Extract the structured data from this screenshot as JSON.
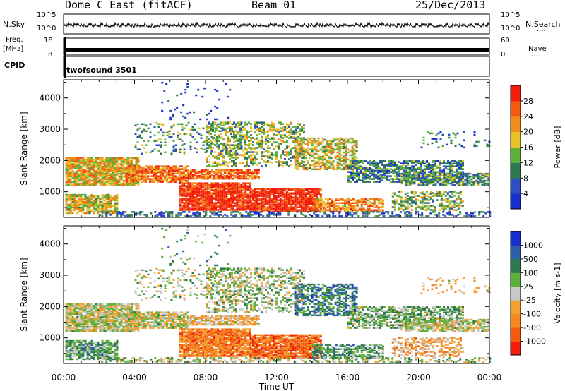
{
  "header": {
    "station": "Dome C East (fitACF)",
    "beam": "Beam 01",
    "date": "25/Dec/2013"
  },
  "left_labels": {
    "nsky": "N.Sky",
    "freq": "Freq.",
    "mhz": "[MHz]",
    "cpid": "CPID"
  },
  "right_labels": {
    "nsearch": "N.Search",
    "nave": "Nave",
    "dots6": "......",
    "dots4": "...."
  },
  "cpid_text": "twofsound 3501",
  "strip_ticks": {
    "nsky_top": "10^5",
    "nsky_bot": "10^0",
    "freq_top": "18",
    "freq_bot": "8",
    "nave_top": "60",
    "nave_bot": "0"
  },
  "colors": {
    "low": "#1a2fcf",
    "mid": "#2e7a4e",
    "green": "#5fb03a",
    "yellow": "#e9c22b",
    "orange": "#f28a1d",
    "red": "#f21d0f",
    "grey": "#c8c8c8"
  },
  "chart_data": [
    {
      "type": "heatmap",
      "name": "power",
      "xlabel": "Time UT",
      "ylabel": "Slant Range [km]",
      "x_ticks": [
        "00:00",
        "04:00",
        "08:00",
        "12:00",
        "16:00",
        "20:00",
        "00:00"
      ],
      "xlim_hours": [
        0,
        24
      ],
      "ylim": [
        180,
        4580
      ],
      "y_ticks": [
        1000,
        2000,
        3000,
        4000
      ],
      "colorbar": {
        "label": "Power [dB]",
        "ticks": [
          "4",
          "8",
          "12",
          "16",
          "20",
          "24",
          "28"
        ],
        "colors": [
          "#1a2fcf",
          "#2e4fbf",
          "#2e7a4e",
          "#5fb03a",
          "#e9c22b",
          "#f28a1d",
          "#f25a10",
          "#f21d0f"
        ]
      }
    },
    {
      "type": "heatmap",
      "name": "velocity",
      "xlabel": "Time UT",
      "ylabel": "Slant Range [km]",
      "x_ticks": [
        "00:00",
        "04:00",
        "08:00",
        "12:00",
        "16:00",
        "20:00",
        "00:00"
      ],
      "xlim_hours": [
        0,
        24
      ],
      "ylim": [
        180,
        4580
      ],
      "y_ticks": [
        1000,
        2000,
        3000,
        4000
      ],
      "colorbar": {
        "label": "Velocity [m s-1]",
        "ticks": [
          "1000",
          "500",
          "100",
          "25",
          "-25",
          "-100",
          "-500",
          "-1000"
        ],
        "colors": [
          "#1a2fcf",
          "#2e60a8",
          "#2e7a4e",
          "#5fb03a",
          "#c8c8c8",
          "#f2a030",
          "#f28a1d",
          "#f25a10",
          "#f21d0f"
        ]
      }
    }
  ]
}
